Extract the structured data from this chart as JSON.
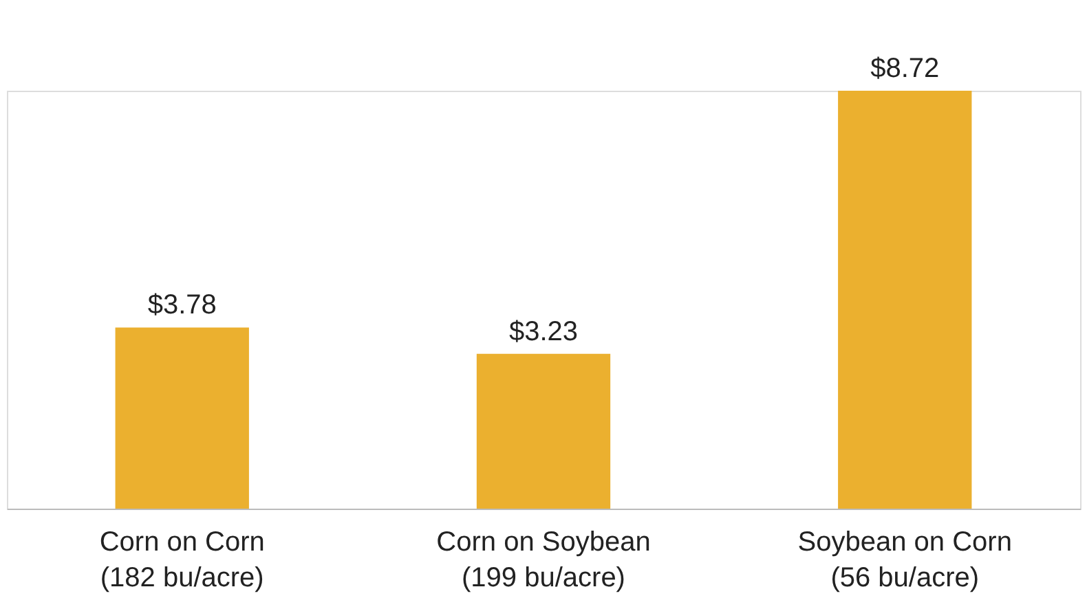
{
  "chart_data": {
    "type": "bar",
    "categories": [
      "Corn on Corn\n(182 bu/acre)",
      "Corn on Soybean\n(199 bu/acre)",
      "Soybean on Corn\n(56 bu/acre)"
    ],
    "values": [
      3.78,
      3.23,
      8.72
    ],
    "value_labels": [
      "$3.78",
      "$3.23",
      "$8.72"
    ],
    "color": "#ebb02f",
    "grid": false
  }
}
